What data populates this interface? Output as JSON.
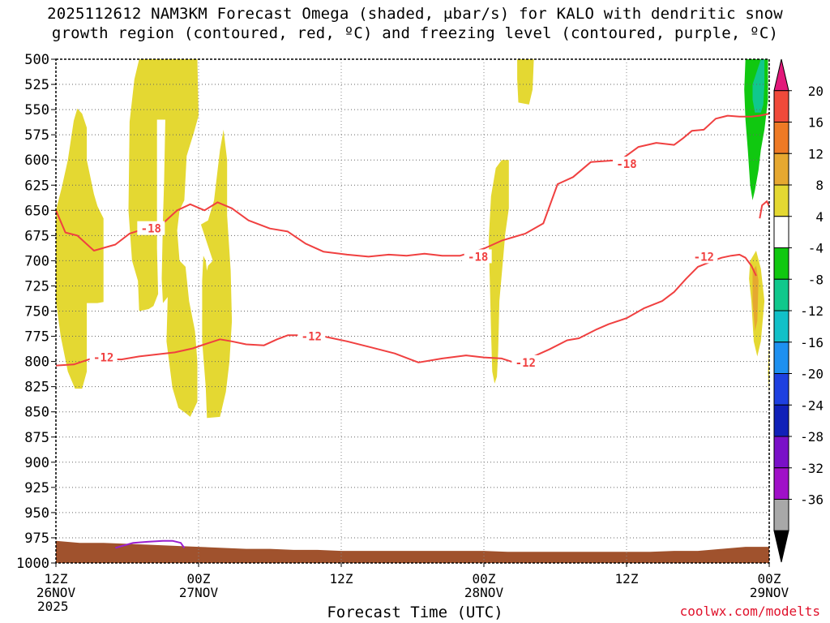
{
  "title_line1": "2025112612 NAM3KM Forecast Omega (shaded, μbar/s) for KALO with dendritic snow",
  "title_line2": "growth region (contoured, red, ºC) and freezing level (contoured, purple, ºC)",
  "credit": "coolwx.com/modelts",
  "chart_data": {
    "type": "contour-timeheight",
    "xlabel": "Forecast Time (UTC)",
    "x_range_hours": [
      0,
      60
    ],
    "x_ticks": [
      {
        "hour": 0,
        "time": "12Z",
        "date": "26NOV",
        "year": "2025"
      },
      {
        "hour": 12,
        "time": "00Z",
        "date": "27NOV"
      },
      {
        "hour": 24,
        "time": "12Z",
        "date": ""
      },
      {
        "hour": 36,
        "time": "00Z",
        "date": "28NOV"
      },
      {
        "hour": 48,
        "time": "12Z",
        "date": ""
      },
      {
        "hour": 60,
        "time": "00Z",
        "date": "29NOV"
      }
    ],
    "y_unit": "hPa",
    "y_ticks": [
      500,
      525,
      550,
      575,
      600,
      625,
      650,
      675,
      700,
      725,
      750,
      775,
      800,
      825,
      850,
      875,
      900,
      925,
      950,
      975,
      1000
    ],
    "y_range": [
      500,
      1000
    ],
    "grid": true,
    "colorbar": {
      "labels": [
        20,
        16,
        12,
        8,
        4,
        -4,
        -8,
        -12,
        -16,
        -20,
        -24,
        -28,
        -32,
        -36
      ],
      "colors_top_to_bottom": [
        "#e2187a",
        "#f04a3a",
        "#ee7a25",
        "#e6a830",
        "#e4d832",
        "#ffffff",
        "#10c810",
        "#10c88c",
        "#12c0c8",
        "#1e90f0",
        "#1e40e0",
        "#1020b8",
        "#7a10c8",
        "#a010c8",
        "#a8a8a8",
        "#000000"
      ]
    },
    "series": [
      {
        "name": "-18",
        "color": "#f04040",
        "points": [
          [
            0,
            650
          ],
          [
            0.8,
            672
          ],
          [
            1.8,
            675
          ],
          [
            3.2,
            690
          ],
          [
            5,
            684
          ],
          [
            6.2,
            673
          ],
          [
            7.8,
            667
          ],
          [
            9,
            663
          ],
          [
            10.2,
            650
          ],
          [
            11.3,
            644
          ],
          [
            12.5,
            650
          ],
          [
            13.6,
            642
          ],
          [
            14.8,
            648
          ],
          [
            16.2,
            660
          ],
          [
            18,
            668
          ],
          [
            19.5,
            671
          ],
          [
            21,
            683
          ],
          [
            22.5,
            691
          ],
          [
            24.5,
            694
          ],
          [
            26.3,
            696
          ],
          [
            28,
            694
          ],
          [
            29.5,
            695
          ],
          [
            31,
            693
          ],
          [
            32.5,
            695
          ],
          [
            34,
            695
          ],
          [
            36,
            688
          ],
          [
            37.5,
            680
          ],
          [
            39.5,
            673
          ],
          [
            41,
            663
          ],
          [
            42.2,
            624
          ],
          [
            43.5,
            617
          ],
          [
            45,
            602
          ],
          [
            47.5,
            600
          ],
          [
            49,
            587
          ],
          [
            50.5,
            583
          ],
          [
            52,
            585
          ],
          [
            52.8,
            578
          ],
          [
            53.5,
            571
          ],
          [
            54.5,
            570
          ],
          [
            55.5,
            559
          ],
          [
            56.5,
            556
          ],
          [
            57.5,
            557
          ],
          [
            58.5,
            557
          ],
          [
            59.2,
            556
          ],
          [
            60,
            554
          ]
        ]
      },
      {
        "name": "-12",
        "color": "#f04040",
        "points": [
          [
            0,
            804
          ],
          [
            1.5,
            803
          ],
          [
            3,
            797
          ],
          [
            5.5,
            798
          ],
          [
            7,
            795
          ],
          [
            8.5,
            793
          ],
          [
            10,
            791
          ],
          [
            11.5,
            787
          ],
          [
            12.5,
            783
          ],
          [
            13.8,
            778
          ],
          [
            14.8,
            780
          ],
          [
            16,
            783
          ],
          [
            17.5,
            784
          ],
          [
            18.6,
            778
          ],
          [
            19.5,
            774
          ],
          [
            21,
            774
          ],
          [
            22.5,
            775
          ],
          [
            24.5,
            780
          ],
          [
            26.5,
            786
          ],
          [
            28.5,
            792
          ],
          [
            30.5,
            801
          ],
          [
            32.5,
            797
          ],
          [
            34.5,
            794
          ],
          [
            36,
            796
          ],
          [
            37.5,
            797
          ],
          [
            38.8,
            802
          ],
          [
            40,
            796
          ],
          [
            41.5,
            788
          ],
          [
            43,
            779
          ],
          [
            44,
            777
          ],
          [
            45.5,
            768
          ],
          [
            46.5,
            763
          ],
          [
            48,
            757
          ],
          [
            49.5,
            747
          ],
          [
            51,
            740
          ],
          [
            52,
            731
          ],
          [
            53,
            718
          ],
          [
            54,
            706
          ],
          [
            55.5,
            699
          ],
          [
            56,
            697
          ],
          [
            56.8,
            695
          ],
          [
            57.5,
            694
          ],
          [
            58,
            697
          ],
          [
            58.5,
            705
          ],
          [
            58.9,
            715
          ]
        ]
      },
      {
        "name": "-12 (right edge)",
        "color": "#f04040",
        "points": [
          [
            59.2,
            658
          ],
          [
            59.4,
            645
          ],
          [
            59.8,
            641
          ],
          [
            60,
            646
          ]
        ]
      },
      {
        "name": "freezing level",
        "color": "#9b20d0",
        "points": [
          [
            5,
            985
          ],
          [
            6.5,
            980
          ],
          [
            7.7,
            979
          ],
          [
            9,
            978
          ],
          [
            9.8,
            978
          ],
          [
            10.5,
            980
          ],
          [
            10.8,
            985
          ]
        ]
      }
    ],
    "series_labels": [
      {
        "text": "-18",
        "hour": 8.0,
        "hpa": 668
      },
      {
        "text": "-18",
        "hour": 35.5,
        "hpa": 696
      },
      {
        "text": "-18",
        "hour": 48.0,
        "hpa": 604
      },
      {
        "text": "-12",
        "hour": 4.0,
        "hpa": 796
      },
      {
        "text": "-12",
        "hour": 21.5,
        "hpa": 775
      },
      {
        "text": "-12",
        "hour": 39.5,
        "hpa": 801
      },
      {
        "text": "-12",
        "hour": 54.5,
        "hpa": 696
      }
    ],
    "shaded_regions": [
      {
        "level": 4,
        "color": "#e4d832",
        "polygon": [
          [
            0,
            650
          ],
          [
            0.5,
            627
          ],
          [
            1,
            600
          ],
          [
            1.5,
            561
          ],
          [
            1.8,
            549
          ],
          [
            2.2,
            554
          ],
          [
            2.6,
            568
          ],
          [
            2.6,
            600
          ],
          [
            3.2,
            634
          ],
          [
            3.5,
            646
          ],
          [
            4,
            658
          ],
          [
            4,
            741
          ],
          [
            3.5,
            742
          ],
          [
            2.6,
            742
          ],
          [
            2.6,
            810
          ],
          [
            2.2,
            827
          ],
          [
            1.6,
            827
          ],
          [
            1,
            810
          ],
          [
            0.4,
            775
          ],
          [
            0,
            740
          ]
        ]
      },
      {
        "level": 4,
        "color": "#e4d832",
        "polygon": [
          [
            6.2,
            562
          ],
          [
            6.6,
            520
          ],
          [
            7,
            500
          ],
          [
            9.4,
            500
          ],
          [
            9.5,
            560
          ],
          [
            8.5,
            560
          ],
          [
            8.5,
            688
          ],
          [
            8.6,
            733
          ],
          [
            8.2,
            745
          ],
          [
            7.8,
            748
          ],
          [
            7,
            750
          ],
          [
            6.9,
            720
          ],
          [
            6.4,
            700
          ],
          [
            6.1,
            650
          ]
        ]
      },
      {
        "level": 4,
        "color": "#e4d832",
        "polygon": [
          [
            9.3,
            500
          ],
          [
            11.9,
            500
          ],
          [
            12,
            556
          ],
          [
            11.6,
            573
          ],
          [
            11,
            596
          ],
          [
            10.8,
            640
          ],
          [
            10.4,
            650
          ],
          [
            10.2,
            670
          ],
          [
            10.4,
            700
          ],
          [
            10.9,
            706
          ],
          [
            11.2,
            740
          ],
          [
            11.7,
            770
          ],
          [
            11.9,
            800
          ],
          [
            11.9,
            840
          ],
          [
            11.3,
            855
          ],
          [
            11,
            852
          ],
          [
            10.3,
            846
          ],
          [
            9.8,
            826
          ],
          [
            9.3,
            780
          ],
          [
            9.4,
            736
          ],
          [
            9,
            742
          ],
          [
            8.9,
            718
          ],
          [
            9,
            660
          ],
          [
            9.1,
            620
          ]
        ]
      },
      {
        "level": 4,
        "color": "#e4d832",
        "polygon": [
          [
            12.2,
            664
          ],
          [
            12.8,
            660
          ],
          [
            13.3,
            640
          ],
          [
            13.8,
            590
          ],
          [
            14.1,
            570
          ],
          [
            14.4,
            600
          ],
          [
            14.4,
            655
          ],
          [
            14.7,
            710
          ],
          [
            14.8,
            760
          ],
          [
            14.6,
            800
          ],
          [
            14.3,
            830
          ],
          [
            13.8,
            855
          ],
          [
            12.7,
            856
          ],
          [
            12.6,
            825
          ],
          [
            12.3,
            780
          ],
          [
            12.3,
            720
          ],
          [
            12.4,
            695
          ],
          [
            12.6,
            700
          ],
          [
            12.7,
            710
          ],
          [
            12.8,
            705
          ],
          [
            13.2,
            700
          ]
        ]
      },
      {
        "level": 4,
        "color": "#e4d832",
        "polygon": [
          [
            36.6,
            636
          ],
          [
            37,
            608
          ],
          [
            37.5,
            600
          ],
          [
            38.1,
            600
          ],
          [
            38.1,
            648
          ],
          [
            37.8,
            673
          ],
          [
            37.6,
            700
          ],
          [
            37.3,
            740
          ],
          [
            37.2,
            790
          ],
          [
            37.1,
            815
          ],
          [
            36.9,
            822
          ],
          [
            36.7,
            810
          ],
          [
            36.6,
            770
          ],
          [
            36.5,
            720
          ],
          [
            36.4,
            680
          ]
        ]
      },
      {
        "level": 4,
        "color": "#e4d832",
        "polygon": [
          [
            38.8,
            500
          ],
          [
            40.2,
            500
          ],
          [
            40.1,
            530
          ],
          [
            39.8,
            545
          ],
          [
            38.9,
            543
          ],
          [
            38.8,
            520
          ]
        ]
      },
      {
        "level": 4,
        "color": "#e4d832",
        "polygon": [
          [
            58.4,
            700
          ],
          [
            58.9,
            690
          ],
          [
            59.3,
            708
          ],
          [
            59.6,
            740
          ],
          [
            59.3,
            780
          ],
          [
            59,
            795
          ],
          [
            58.7,
            780
          ],
          [
            58.5,
            740
          ],
          [
            58.3,
            718
          ]
        ]
      },
      {
        "level": 4,
        "color": "#e4d832",
        "polygon": [
          [
            59.95,
            790
          ],
          [
            60,
            785
          ],
          [
            60,
            832
          ],
          [
            59.9,
            812
          ]
        ]
      },
      {
        "level": 8,
        "color": "#e6a830",
        "polygon": [
          [
            58.6,
            710
          ],
          [
            58.9,
            705
          ],
          [
            59.1,
            720
          ],
          [
            59,
            760
          ],
          [
            58.8,
            770
          ],
          [
            58.6,
            740
          ]
        ]
      },
      {
        "level": -8,
        "color": "#10c810",
        "polygon": [
          [
            58,
            500
          ],
          [
            59.9,
            500
          ],
          [
            59.9,
            540
          ],
          [
            59.6,
            570
          ],
          [
            59.3,
            590
          ],
          [
            59.1,
            610
          ],
          [
            58.8,
            630
          ],
          [
            58.6,
            640
          ],
          [
            58.4,
            625
          ],
          [
            58.2,
            590
          ],
          [
            58,
            560
          ],
          [
            57.9,
            530
          ]
        ]
      },
      {
        "level": -12,
        "color": "#10c88c",
        "polygon": [
          [
            58.6,
            525
          ],
          [
            59.3,
            500
          ],
          [
            59.6,
            500
          ],
          [
            59.6,
            525
          ],
          [
            59.5,
            545
          ],
          [
            59.3,
            553
          ],
          [
            58.8,
            553
          ],
          [
            58.6,
            540
          ]
        ]
      }
    ],
    "terrain_color": "#a0522d",
    "terrain": [
      [
        0,
        978
      ],
      [
        2,
        980
      ],
      [
        4,
        980
      ],
      [
        6,
        981
      ],
      [
        8,
        982
      ],
      [
        10,
        983
      ],
      [
        12,
        984
      ],
      [
        14,
        985
      ],
      [
        16,
        986
      ],
      [
        18,
        986
      ],
      [
        20,
        987
      ],
      [
        22,
        987
      ],
      [
        24,
        988
      ],
      [
        26,
        988
      ],
      [
        28,
        988
      ],
      [
        30,
        988
      ],
      [
        32,
        988
      ],
      [
        34,
        988
      ],
      [
        36,
        988
      ],
      [
        38,
        989
      ],
      [
        40,
        989
      ],
      [
        42,
        989
      ],
      [
        44,
        989
      ],
      [
        46,
        989
      ],
      [
        48,
        989
      ],
      [
        50,
        989
      ],
      [
        52,
        988
      ],
      [
        54,
        988
      ],
      [
        56,
        986
      ],
      [
        57,
        985
      ],
      [
        58,
        984
      ],
      [
        60,
        984
      ]
    ]
  }
}
